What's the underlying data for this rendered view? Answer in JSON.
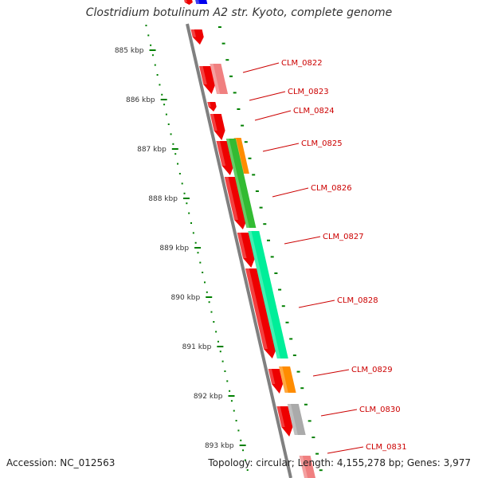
{
  "title": "Clostridium botulinum A2 str. Kyoto, complete genome",
  "accession": "Accession: NC_012563",
  "topology": "Topology: circular; Length: 4,155,278 bp; Genes: 3,977",
  "colors": {
    "backbone": "#808080",
    "scale": "#008000",
    "label": "#cc0000",
    "gene_red": "#ee0000",
    "gene_pink": "#f08080",
    "gene_blue": "#0000ee",
    "gene_orange": "#ff8c00",
    "gene_green": "#33bb33",
    "gene_aqua": "#00ee99",
    "gene_gray": "#aaaaaa"
  },
  "scale": {
    "ticks": [
      "885 kbp",
      "886 kbp",
      "887 kbp",
      "888 kbp",
      "889 kbp",
      "890 kbp",
      "891 kbp",
      "892 kbp",
      "893 kbp"
    ]
  },
  "genes": [
    {
      "label": "CLM_0822",
      "color": "gene_pink"
    },
    {
      "label": "CLM_0823",
      "color": "gene_red"
    },
    {
      "label": "CLM_0824",
      "color": "gene_red"
    },
    {
      "label": "CLM_0825",
      "color": "gene_orange"
    },
    {
      "label": "CLM_0826",
      "color": "gene_green"
    },
    {
      "label": "CLM_0827",
      "color": "gene_aqua"
    },
    {
      "label": "CLM_0828",
      "color": "gene_aqua"
    },
    {
      "label": "CLM_0829",
      "color": "gene_orange"
    },
    {
      "label": "CLM_0830",
      "color": "gene_gray"
    },
    {
      "label": "CLM_0831",
      "color": "gene_pink"
    }
  ]
}
